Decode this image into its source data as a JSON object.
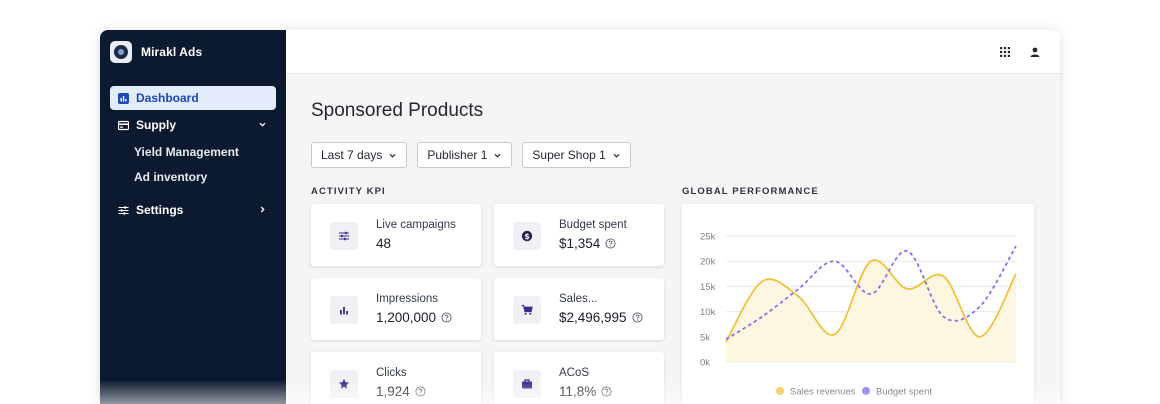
{
  "app": {
    "name": "Mirakl Ads"
  },
  "sidebar": {
    "items": [
      {
        "label": "Dashboard",
        "icon": "chart-bar-icon",
        "active": true
      },
      {
        "label": "Supply",
        "icon": "card-icon",
        "expanded": true,
        "children": [
          {
            "label": "Yield Management"
          },
          {
            "label": "Ad inventory"
          }
        ]
      },
      {
        "label": "Settings",
        "icon": "sliders-icon",
        "expanded": false
      }
    ]
  },
  "topbar": {
    "icons": [
      "apps-grid-icon",
      "user-icon"
    ]
  },
  "page": {
    "title": "Sponsored Products",
    "filters": [
      "Last 7 days",
      "Publisher 1",
      "Super Shop 1"
    ]
  },
  "kpi_section": {
    "title": "ACTIVITY KPI",
    "cards": [
      {
        "label": "Live campaigns",
        "value": "48",
        "icon": "sliders-icon",
        "help": false
      },
      {
        "label": "Budget spent",
        "value": "$1,354",
        "icon": "dollar-coin-icon",
        "help": true
      },
      {
        "label": "Impressions",
        "value": "1,200,000",
        "icon": "bar-chart-icon",
        "help": true
      },
      {
        "label": "Sales...",
        "value": "$2,496,995",
        "icon": "cart-icon",
        "help": true
      },
      {
        "label": "Clicks",
        "value": "1,924",
        "icon": "star-icon",
        "help": true
      },
      {
        "label": "ACoS",
        "value": "11,8%",
        "icon": "briefcase-icon",
        "help": true
      }
    ]
  },
  "performance_section": {
    "title": "GLOBAL PERFORMANCE"
  },
  "colors": {
    "sidebar_bg": "#0c1a30",
    "accent": "#1c47b5",
    "sales": "#f0c23c",
    "budget": "#8a6fe0",
    "kpi_icon": "#3b2a8c"
  },
  "chart_data": {
    "type": "line",
    "title": "",
    "xlabel": "",
    "ylabel": "",
    "ylim": [
      0,
      25000
    ],
    "yticks": [
      "0k",
      "5k",
      "10k",
      "15k",
      "20k",
      "25k"
    ],
    "grid": true,
    "legend_placement": "bottom",
    "x": [
      0,
      1,
      2,
      3,
      4,
      5,
      6,
      7,
      8
    ],
    "series": [
      {
        "name": "Sales revenues",
        "color": "#f0c23c",
        "fill": true,
        "values": [
          4000,
          16000,
          13000,
          5500,
          20000,
          14500,
          17000,
          5000,
          17500
        ]
      },
      {
        "name": "Budget spent",
        "color": "#8a6fe0",
        "dashed": true,
        "values": [
          4500,
          9000,
          14500,
          20000,
          13500,
          22000,
          9000,
          11000,
          23000
        ]
      }
    ]
  }
}
